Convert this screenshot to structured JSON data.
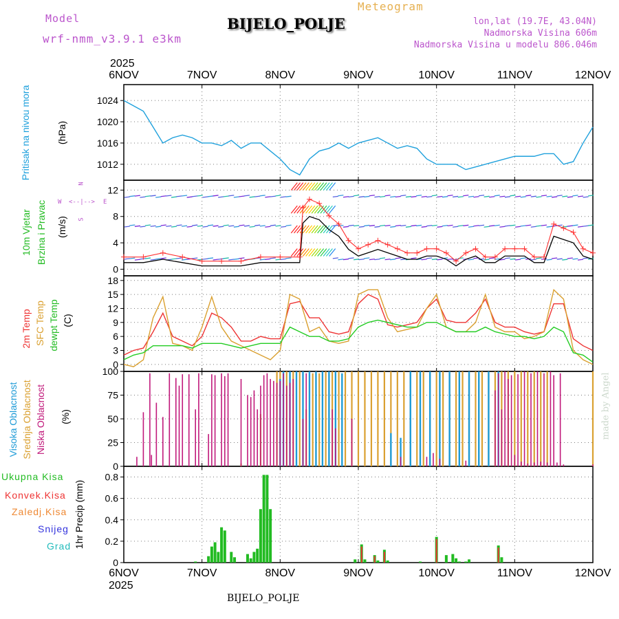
{
  "header": {
    "model_label": "Model",
    "model_name": "wrf-nmm_v3.9.1  e3km",
    "title": "Meteogram",
    "station": "BIJELO_POLJE",
    "coords": "lon,lat (19.7E, 43.04N)",
    "elevation": "Nadmorska Visina 606m",
    "model_elevation": "Nadmorska Visina u modelu 806.046m"
  },
  "footer": {
    "station": "BIJELO_POLJE",
    "watermark": "made by Angel"
  },
  "time_axis": {
    "year": "2025",
    "labels": [
      "6NOV",
      "7NOV",
      "8NOV",
      "9NOV",
      "10NOV",
      "11NOV",
      "12NOV"
    ]
  },
  "wind_direction_legend": {
    "north": "N",
    "south": "S",
    "east": "E",
    "west": "W"
  },
  "panels": {
    "pressure": {
      "title": "Pritisak na nivou mora",
      "unit": "(hPa)"
    },
    "wind": {
      "title_1": "10m Vjetar",
      "title_2": "Brzina i Pravac",
      "unit": "(m/s)"
    },
    "temperature": {
      "title_1": "2m Temp",
      "title_2": "SFC Temp",
      "title_3": "dewpt Temp",
      "unit": "(C)"
    },
    "cloud": {
      "title_1": "Visoka Oblacnost",
      "title_2": "Srednja Oblacnost",
      "title_3": "Niska Oblacnost",
      "unit": "(%)"
    },
    "precip": {
      "legend": [
        "Ukupna Kisa",
        "Konvek.Kisa",
        "Zaledj.Kisa",
        "Snijeg",
        "Grad"
      ],
      "unit": "1hr Precip (mm)"
    }
  },
  "colors": {
    "pressure": "#1ea0dc",
    "wind_speed": "#000000",
    "gust": "#ff3030",
    "t2m": "#ee3333",
    "tsfc": "#daa030",
    "dewpt": "#22cc22",
    "cloud_high": "#1e9bd7",
    "cloud_mid": "#daa030",
    "cloud_low": "#c0187a",
    "precip_total": "#22bb22",
    "precip_conv": "#ee3333",
    "precip_frz": "#ee8833",
    "snow": "#3333dd",
    "hail": "#22bbbb",
    "label_purple": "#bb55cc",
    "title_orange": "#e6b050"
  },
  "chart_data": [
    {
      "type": "line",
      "name": "sea_level_pressure",
      "ylabel": "(hPa)",
      "ylim": [
        1009,
        1027
      ],
      "yticks": [
        1012,
        1016,
        1020,
        1024
      ],
      "x_unit": "hours since 6NOV 00",
      "x": [
        0,
        3,
        6,
        9,
        12,
        15,
        18,
        21,
        24,
        27,
        30,
        33,
        36,
        39,
        42,
        45,
        48,
        51,
        54,
        57,
        60,
        63,
        66,
        69,
        72,
        75,
        78,
        81,
        84,
        87,
        90,
        93,
        96,
        99,
        102,
        105,
        108,
        111,
        114,
        117,
        120,
        123,
        126,
        129,
        132,
        135,
        138,
        141,
        144
      ],
      "values": [
        1024,
        1023,
        1022,
        1019,
        1016,
        1017,
        1017.5,
        1017,
        1016,
        1016,
        1015.5,
        1016.5,
        1015,
        1016,
        1016,
        1014.5,
        1013,
        1011,
        1010,
        1013,
        1014.5,
        1015,
        1016,
        1015,
        1016,
        1016.5,
        1017,
        1016,
        1015,
        1015.5,
        1015,
        1013,
        1012,
        1012,
        1012,
        1011,
        1011.5,
        1012,
        1012.5,
        1013,
        1013.5,
        1013.5,
        1013.5,
        1014,
        1014,
        1012,
        1012.5,
        1016,
        1019
      ]
    },
    {
      "type": "line",
      "name": "wind_speed_10m",
      "ylabel": "(m/s)",
      "ylim": [
        -1,
        13.5
      ],
      "yticks": [
        0,
        4,
        8,
        12
      ],
      "x": [
        0,
        6,
        12,
        18,
        24,
        30,
        36,
        42,
        48,
        54,
        55,
        57,
        60,
        63,
        66,
        69,
        72,
        75,
        78,
        81,
        84,
        87,
        90,
        93,
        96,
        99,
        102,
        105,
        108,
        111,
        114,
        117,
        120,
        123,
        126,
        129,
        132,
        135,
        138,
        141,
        144
      ],
      "values": [
        1,
        1,
        1.5,
        1,
        0.5,
        0.5,
        0.5,
        1,
        1,
        1,
        7,
        8,
        7.5,
        6,
        5,
        3,
        2,
        2.5,
        3,
        2.5,
        2,
        1.5,
        1.5,
        2,
        2,
        1.5,
        0.5,
        1.5,
        2,
        1,
        1,
        2,
        2,
        2,
        1,
        1,
        5,
        4.5,
        4,
        2,
        1.5
      ]
    },
    {
      "type": "line",
      "name": "temperature",
      "ylabel": "(C)",
      "ylim": [
        -1.5,
        19
      ],
      "yticks": [
        0,
        3,
        6,
        9,
        12,
        15,
        18
      ],
      "x": [
        0,
        3,
        6,
        9,
        12,
        15,
        18,
        21,
        24,
        27,
        30,
        33,
        36,
        39,
        42,
        45,
        48,
        51,
        54,
        57,
        60,
        63,
        66,
        69,
        72,
        75,
        78,
        81,
        84,
        87,
        90,
        93,
        96,
        99,
        102,
        105,
        108,
        111,
        114,
        117,
        120,
        123,
        126,
        129,
        132,
        135,
        138,
        141,
        144
      ],
      "series": [
        {
          "name": "2m Temp",
          "values": [
            2,
            3,
            3.5,
            7,
            11,
            6,
            5,
            4,
            6,
            11,
            10,
            8,
            5,
            5,
            6,
            5.5,
            5.5,
            13,
            13.5,
            10,
            10,
            7,
            6.5,
            7,
            13,
            15,
            14,
            8.5,
            8,
            8.5,
            9,
            12,
            14,
            9.5,
            9,
            9,
            11,
            14,
            9,
            8,
            8,
            7,
            6.5,
            7,
            13,
            13,
            5.5,
            4,
            3
          ]
        },
        {
          "name": "SFC Temp",
          "values": [
            0,
            -0.5,
            1,
            10,
            14.5,
            4.5,
            4,
            3,
            8,
            14.5,
            8,
            5,
            4,
            3,
            2,
            1,
            3,
            15,
            14,
            7,
            8,
            5,
            4.5,
            5,
            15,
            16,
            16,
            10,
            7,
            7.5,
            8,
            12,
            15,
            8,
            7,
            7,
            9,
            15,
            8,
            7,
            7,
            5.5,
            6,
            7,
            16,
            14,
            3,
            1,
            0
          ]
        },
        {
          "name": "dewpt Temp",
          "values": [
            1,
            2,
            2.5,
            4,
            4,
            4,
            4,
            3.5,
            4.5,
            4.5,
            4.5,
            4,
            3.5,
            4,
            4.5,
            4.5,
            4.5,
            8,
            7,
            6,
            6,
            5,
            5,
            5.5,
            8,
            9,
            9.5,
            9,
            8.5,
            8,
            8,
            9,
            9,
            8,
            7,
            7,
            7,
            8,
            7,
            6.5,
            6,
            6,
            5.5,
            6,
            8,
            7,
            2.5,
            2,
            0.5
          ]
        }
      ]
    },
    {
      "type": "bar",
      "name": "cloud_cover",
      "ylabel": "(%)",
      "ylim": [
        0,
        100
      ],
      "yticks": [
        0,
        25,
        50,
        75,
        100
      ],
      "series": [
        {
          "name": "Niska Oblacnost",
          "x": [
            4,
            6,
            8,
            8.5,
            10,
            12,
            14,
            16,
            17,
            18,
            20,
            22,
            23,
            26,
            27,
            28,
            30,
            31,
            32,
            36,
            38,
            39,
            40,
            41,
            42,
            43,
            44,
            45,
            46,
            47,
            48,
            49,
            50,
            51,
            52,
            55,
            56,
            64,
            65,
            70,
            85,
            93,
            95,
            97,
            105,
            114,
            115,
            116,
            117,
            118,
            119,
            120,
            121,
            122,
            123,
            124,
            125,
            126,
            127,
            128,
            129,
            130,
            131,
            132,
            133,
            134,
            135,
            144
          ],
          "values": [
            10,
            57,
            98,
            12,
            67,
            52,
            98,
            93,
            85,
            97,
            97,
            60,
            98,
            34,
            97,
            96,
            98,
            95,
            98,
            92,
            75,
            73,
            80,
            60,
            85,
            96,
            98,
            92,
            90,
            88,
            90,
            98,
            85,
            88,
            92,
            50,
            98,
            60,
            40,
            50,
            10,
            10,
            14,
            8,
            6,
            80,
            98,
            60,
            100,
            92,
            96,
            12,
            97,
            5,
            100,
            3,
            98,
            4,
            100,
            5,
            98,
            4,
            100,
            96,
            4,
            98,
            2,
            2
          ]
        },
        {
          "name": "Srednja Oblacnost",
          "x": [
            36,
            42,
            47,
            48,
            50,
            52,
            54,
            56,
            58,
            60,
            62,
            64,
            66,
            68,
            70,
            72,
            74,
            76,
            78,
            80,
            82,
            84,
            86,
            88,
            90,
            92,
            94,
            96,
            98,
            100,
            102,
            104,
            106,
            108,
            110,
            112,
            114,
            116,
            118,
            120,
            122,
            124,
            126,
            128,
            130,
            144
          ],
          "values": [
            3,
            55,
            100,
            100,
            100,
            100,
            100,
            60,
            98,
            98,
            100,
            100,
            100,
            100,
            100,
            100,
            100,
            100,
            100,
            100,
            100,
            100,
            100,
            100,
            100,
            100,
            100,
            100,
            100,
            100,
            100,
            100,
            100,
            100,
            100,
            100,
            100,
            100,
            100,
            100,
            100,
            100,
            100,
            100,
            100,
            100
          ]
        },
        {
          "name": "Visoka Oblacnost",
          "x": [
            48,
            49,
            51,
            53,
            55,
            57,
            59,
            61,
            63,
            65,
            67,
            82,
            85,
            88,
            91,
            94,
            97,
            100,
            103,
            106,
            109,
            112,
            115
          ],
          "values": [
            92,
            100,
            100,
            100,
            100,
            100,
            100,
            100,
            100,
            100,
            98,
            35,
            30,
            100,
            100,
            100,
            100,
            100,
            100,
            100,
            100,
            100,
            100
          ]
        }
      ]
    },
    {
      "type": "bar",
      "name": "precip_1hr",
      "ylabel": "1hr Precip (mm)",
      "ylim": [
        0,
        0.9
      ],
      "yticks": [
        0,
        0.2,
        0.4,
        0.6,
        0.8
      ],
      "series": [
        {
          "name": "Ukupna Kisa",
          "x": [
            22,
            26,
            27,
            28,
            29,
            30,
            31,
            33,
            34,
            38,
            39,
            40,
            41,
            42,
            43,
            44,
            45,
            71,
            73,
            74,
            77,
            78,
            80,
            81,
            91,
            96,
            99,
            101,
            102,
            103,
            105,
            106,
            115,
            116
          ],
          "values": [
            0.01,
            0.06,
            0.15,
            0.19,
            0.1,
            0.33,
            0.3,
            0.1,
            0.05,
            0.08,
            0.04,
            0.1,
            0.13,
            0.5,
            0.82,
            0.82,
            0.5,
            0.03,
            0.17,
            0.03,
            0.07,
            0.02,
            0.12,
            0.02,
            0.01,
            0.24,
            0.07,
            0.08,
            0.04,
            0.01,
            0.01,
            0.03,
            0.16,
            0.05
          ]
        },
        {
          "name": "Konvek.Kisa",
          "x": [
            73,
            77,
            80,
            96,
            115
          ],
          "values": [
            0.15,
            0.06,
            0.1,
            0.22,
            0.14
          ]
        }
      ]
    }
  ]
}
